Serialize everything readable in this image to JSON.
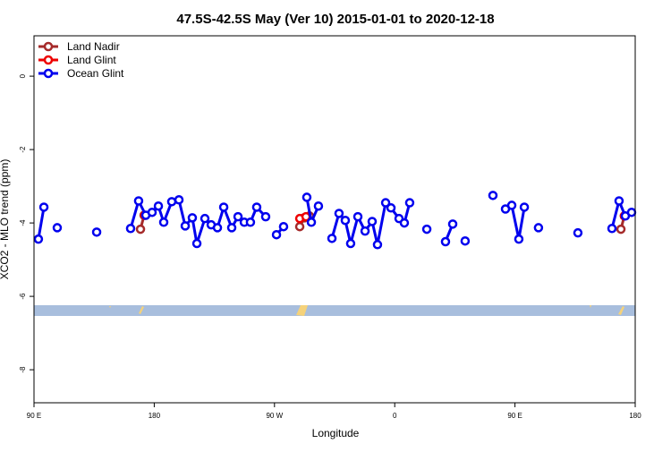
{
  "chart_data": {
    "type": "line",
    "title": "47.5S-42.5S May (Ver 10)   2015-01-01 to 2020-12-18",
    "x_label": "Longitude",
    "y_label": "XCO2 - MLO trend (ppm)",
    "xlim": [
      90,
      540
    ],
    "xticks": [
      {
        "value": 90,
        "label": "90 E"
      },
      {
        "value": 180,
        "label": "180"
      },
      {
        "value": 270,
        "label": "90 W"
      },
      {
        "value": 360,
        "label": "0"
      },
      {
        "value": 450,
        "label": "90 E"
      },
      {
        "value": 540,
        "label": "180"
      }
    ],
    "ylim": [
      -8.9,
      1.1
    ],
    "yticks": [
      0,
      -2,
      -4,
      -6,
      -8
    ],
    "legend": "top-left",
    "markers": "open-circle",
    "series": [
      {
        "name": "Land Nadir",
        "color": "#a52a2a",
        "x": [
          169.7,
          172.4,
          null,
          288.9,
          292.2,
          296.2,
          null,
          529.3,
          531.9
        ],
        "values": [
          -4.17,
          -3.79,
          null,
          -4.1,
          -3.86,
          -3.81,
          null,
          -4.17,
          -3.81
        ]
      },
      {
        "name": "Land Glint",
        "color": "#ee0000",
        "x": [
          173.0,
          null,
          288.9,
          293.6,
          null,
          531.9
        ],
        "values": [
          -3.79,
          null,
          -3.88,
          -3.83,
          null,
          -3.81
        ]
      },
      {
        "name": "Ocean Glint",
        "color": "#0000ee",
        "x": [
          93.3,
          97.4,
          null,
          107.4,
          null,
          136.9,
          null,
          162.3,
          168.3,
          173.7,
          178.4,
          183.1,
          187.1,
          193.1,
          198.5,
          203.2,
          208.5,
          211.9,
          217.9,
          222.6,
          227.3,
          232.0,
          238.0,
          242.7,
          247.4,
          252.0,
          256.7,
          263.4,
          null,
          271.5,
          276.8,
          null,
          294.2,
          297.6,
          302.9,
          null,
          313.0,
          318.3,
          323.0,
          327.0,
          332.4,
          337.8,
          343.1,
          347.1,
          353.2,
          357.2,
          363.2,
          367.2,
          371.2,
          null,
          384.0,
          null,
          398.0,
          403.4,
          null,
          412.7,
          null,
          433.5,
          null,
          442.9,
          447.6,
          452.9,
          457.0,
          null,
          467.6,
          null,
          497.1,
          null,
          522.6,
          527.9,
          532.6,
          537.3
        ],
        "values": [
          -4.44,
          -3.57,
          null,
          -4.13,
          null,
          -4.25,
          null,
          -4.15,
          -3.4,
          -3.79,
          -3.71,
          -3.54,
          -3.98,
          -3.42,
          -3.37,
          -4.08,
          -3.86,
          -4.56,
          -3.88,
          -4.05,
          -4.13,
          -3.57,
          -4.13,
          -3.83,
          -3.98,
          -3.98,
          -3.57,
          -3.83,
          null,
          -4.32,
          -4.1,
          null,
          -3.3,
          -3.98,
          -3.54,
          null,
          -4.42,
          -3.74,
          -3.93,
          -4.56,
          -3.83,
          -4.22,
          -3.96,
          -4.59,
          -3.45,
          -3.59,
          -3.88,
          -4.0,
          -3.45,
          null,
          -4.17,
          null,
          -4.51,
          -4.03,
          null,
          -4.49,
          null,
          -3.25,
          null,
          -3.62,
          -3.52,
          -4.44,
          -3.57,
          null,
          -4.13,
          null,
          -4.27,
          null,
          -4.15,
          -3.4,
          -3.81,
          -3.71
        ]
      }
    ]
  }
}
